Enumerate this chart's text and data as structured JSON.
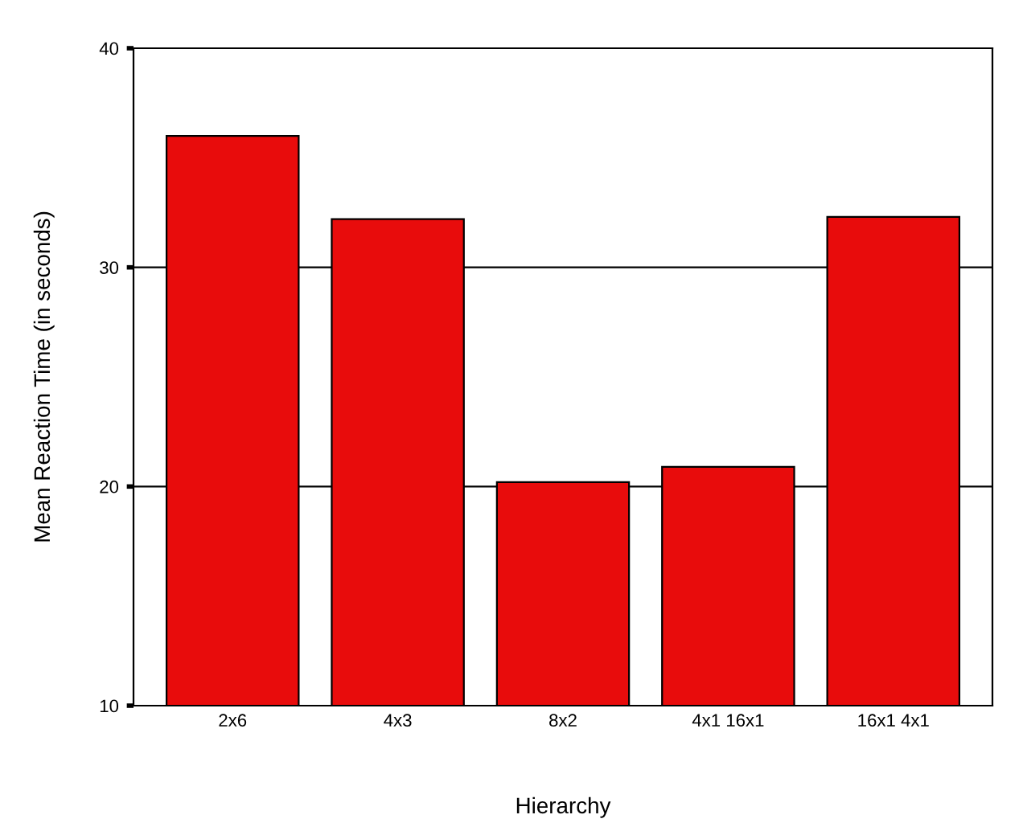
{
  "chart_data": {
    "type": "bar",
    "xlabel": "Hierarchy",
    "ylabel": "Mean Reaction Time (in seconds)",
    "categories": [
      "2x6",
      "4x3",
      "8x2",
      "4x1 16x1",
      "16x1 4x1"
    ],
    "values": [
      36.0,
      32.2,
      20.2,
      20.9,
      32.3
    ],
    "color": "#e80c0c",
    "ylim": [
      10,
      40
    ],
    "yticks": [
      10,
      20,
      30,
      40
    ],
    "grid": "y"
  }
}
